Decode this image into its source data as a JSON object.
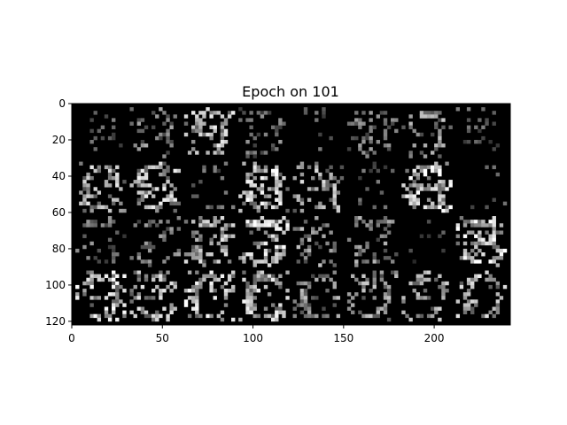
{
  "figure": {
    "title": "Epoch on 101"
  },
  "image": {
    "description_kind": "grid of generated digit samples",
    "grid_rows": 4,
    "grid_cols": 8,
    "cell_width_data": 28,
    "cell_height_data": 28,
    "cell_gap_data": 2,
    "background_color": "#000000"
  },
  "axes": {
    "x_ticks": [
      {
        "value": 0,
        "label": "0"
      },
      {
        "value": 50,
        "label": "50"
      },
      {
        "value": 100,
        "label": "100"
      },
      {
        "value": 150,
        "label": "150"
      },
      {
        "value": 200,
        "label": "200"
      }
    ],
    "y_ticks": [
      {
        "value": 0,
        "label": "0"
      },
      {
        "value": 20,
        "label": "20"
      },
      {
        "value": 40,
        "label": "40"
      },
      {
        "value": 60,
        "label": "60"
      },
      {
        "value": 80,
        "label": "80"
      },
      {
        "value": 100,
        "label": "100"
      },
      {
        "value": 120,
        "label": "120"
      }
    ],
    "xlim": [
      0,
      242
    ],
    "ylim": [
      0,
      122
    ]
  },
  "samples": [
    {
      "row": 0,
      "col": 0,
      "digit": "4",
      "brightness": 0.25
    },
    {
      "row": 0,
      "col": 1,
      "digit": "8",
      "brightness": 0.45
    },
    {
      "row": 0,
      "col": 2,
      "digit": "9",
      "brightness": 0.8
    },
    {
      "row": 0,
      "col": 3,
      "digit": "9",
      "brightness": 0.35
    },
    {
      "row": 0,
      "col": 4,
      "digit": "3",
      "brightness": 0.2
    },
    {
      "row": 0,
      "col": 5,
      "digit": "8",
      "brightness": 0.4
    },
    {
      "row": 0,
      "col": 6,
      "digit": "9",
      "brightness": 0.6
    },
    {
      "row": 0,
      "col": 7,
      "digit": "4",
      "brightness": 0.22
    },
    {
      "row": 1,
      "col": 0,
      "digit": "0",
      "brightness": 0.75
    },
    {
      "row": 1,
      "col": 1,
      "digit": "8",
      "brightness": 0.8
    },
    {
      "row": 1,
      "col": 2,
      "digit": "8",
      "brightness": 0.25
    },
    {
      "row": 1,
      "col": 3,
      "digit": "8",
      "brightness": 0.9
    },
    {
      "row": 1,
      "col": 4,
      "digit": "3",
      "brightness": 0.7
    },
    {
      "row": 1,
      "col": 5,
      "digit": "3",
      "brightness": 0.2
    },
    {
      "row": 1,
      "col": 6,
      "digit": "8",
      "brightness": 0.95
    },
    {
      "row": 1,
      "col": 7,
      "digit": "9",
      "brightness": 0.15
    },
    {
      "row": 2,
      "col": 0,
      "digit": "3",
      "brightness": 0.35
    },
    {
      "row": 2,
      "col": 1,
      "digit": "3",
      "brightness": 0.4
    },
    {
      "row": 2,
      "col": 2,
      "digit": "8",
      "brightness": 0.75
    },
    {
      "row": 2,
      "col": 3,
      "digit": "3",
      "brightness": 0.9
    },
    {
      "row": 2,
      "col": 4,
      "digit": "6",
      "brightness": 0.55
    },
    {
      "row": 2,
      "col": 5,
      "digit": "3",
      "brightness": 0.5
    },
    {
      "row": 2,
      "col": 6,
      "digit": "4",
      "brightness": 0.08
    },
    {
      "row": 2,
      "col": 7,
      "digit": "3",
      "brightness": 1.0
    },
    {
      "row": 3,
      "col": 0,
      "digit": "9",
      "brightness": 0.9
    },
    {
      "row": 3,
      "col": 1,
      "digit": "3",
      "brightness": 0.75
    },
    {
      "row": 3,
      "col": 2,
      "digit": "0",
      "brightness": 0.9
    },
    {
      "row": 3,
      "col": 3,
      "digit": "0",
      "brightness": 0.85
    },
    {
      "row": 3,
      "col": 4,
      "digit": "0",
      "brightness": 0.55
    },
    {
      "row": 3,
      "col": 5,
      "digit": "9",
      "brightness": 0.6
    },
    {
      "row": 3,
      "col": 6,
      "digit": "9",
      "brightness": 0.65
    },
    {
      "row": 3,
      "col": 7,
      "digit": "0",
      "brightness": 0.8
    }
  ]
}
